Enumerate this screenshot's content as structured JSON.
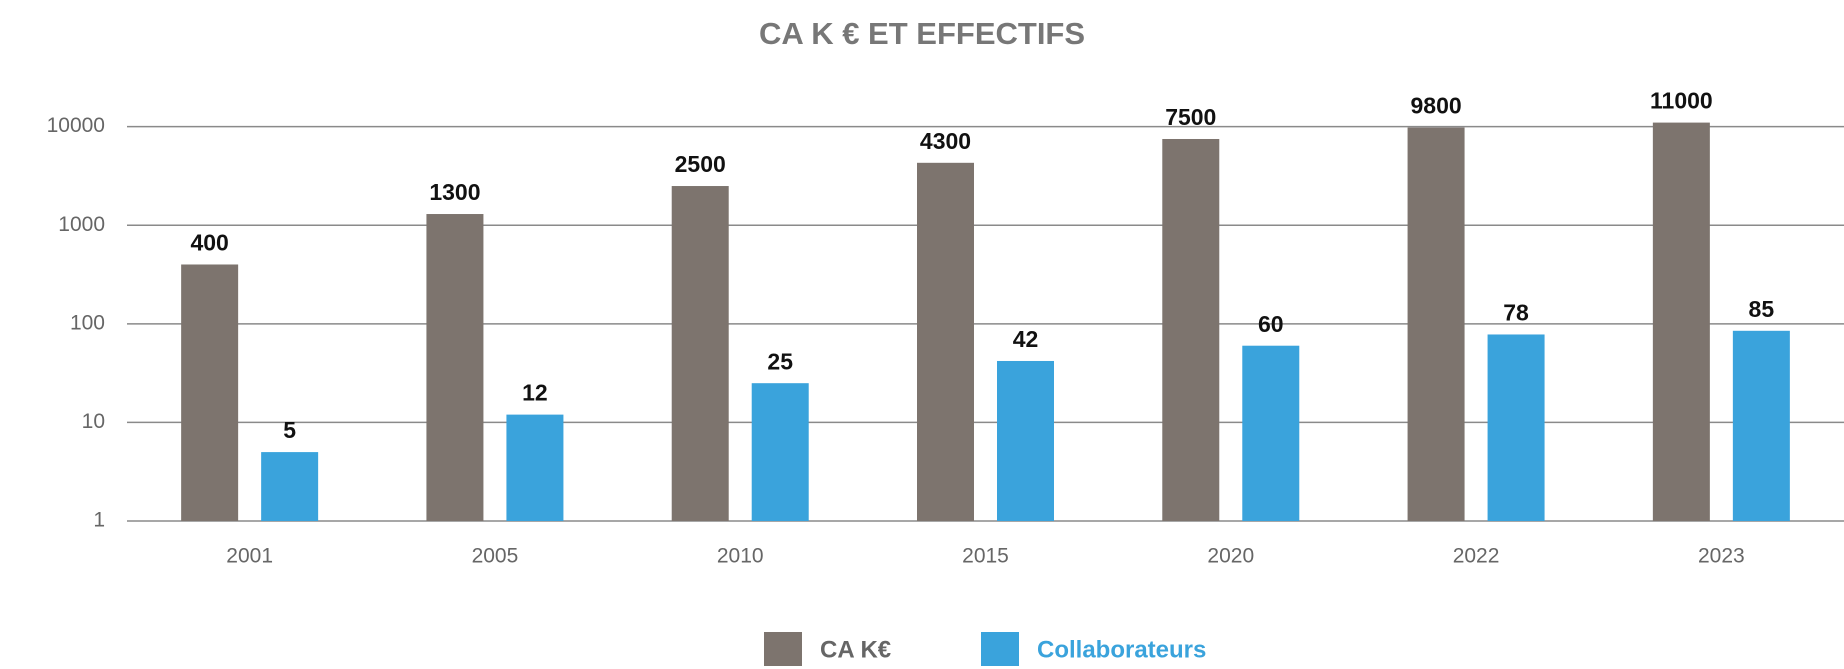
{
  "chart_data": {
    "type": "bar",
    "title": "CA K € ET EFFECTIFS",
    "categories": [
      "2001",
      "2005",
      "2010",
      "2015",
      "2020",
      "2022",
      "2023"
    ],
    "series": [
      {
        "name": "CA K€",
        "color": "#7d746e",
        "values": [
          400,
          1300,
          2500,
          4300,
          7500,
          9800,
          11000
        ]
      },
      {
        "name": "Collaborateurs",
        "color": "#3aa3dc",
        "values": [
          5,
          12,
          25,
          42,
          60,
          78,
          85
        ]
      }
    ],
    "ylim": [
      1,
      20000
    ],
    "yticks": [
      1,
      10,
      100,
      1000,
      10000
    ],
    "log_scale": true,
    "grid": true,
    "legend": "bottom"
  }
}
